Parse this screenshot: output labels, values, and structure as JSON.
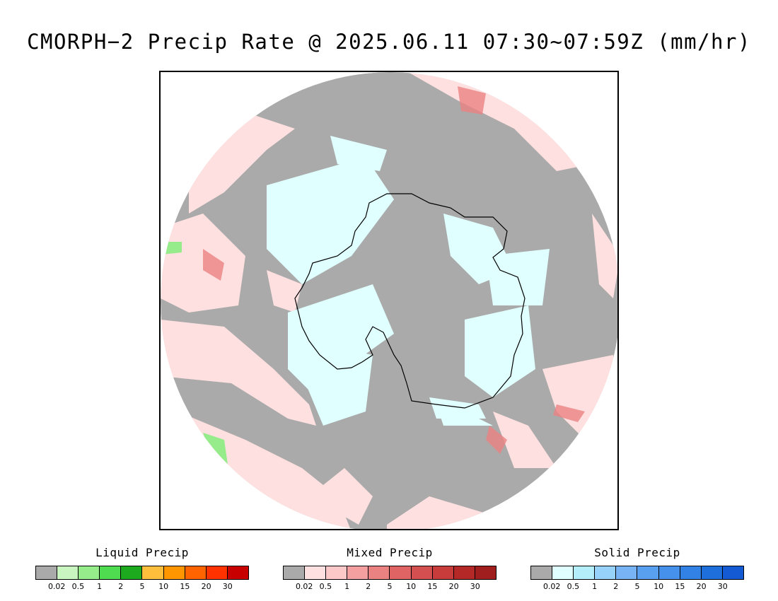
{
  "title": "CMORPH−2 Precip Rate @ 2025.06.11 07:30~07:59Z (mm/hr)",
  "colors": {
    "no_precip": "#aaaaaa",
    "continent_outline": "#000000"
  },
  "legends": [
    {
      "id": "liquid",
      "title": "Liquid Precip",
      "colors": [
        "#aaaaaa",
        "#c8f5c0",
        "#96eb8a",
        "#50dc50",
        "#1eaa1e",
        "#ffbe3c",
        "#ff9600",
        "#ff6400",
        "#ff3200",
        "#c80000"
      ],
      "ticks": [
        "0.02",
        "0.5",
        "1",
        "2",
        "5",
        "10",
        "15",
        "20",
        "30"
      ]
    },
    {
      "id": "mixed",
      "title": "Mixed Precip",
      "colors": [
        "#aaaaaa",
        "#ffe0e0",
        "#fcc8c8",
        "#f5a0a0",
        "#eb8282",
        "#e06464",
        "#d45050",
        "#c83c3c",
        "#b42828",
        "#a01e1e"
      ],
      "ticks": [
        "0.02",
        "0.5",
        "1",
        "2",
        "5",
        "10",
        "15",
        "20",
        "30"
      ]
    },
    {
      "id": "solid",
      "title": "Solid Precip",
      "colors": [
        "#aaaaaa",
        "#e0ffff",
        "#b4eefa",
        "#96d2fa",
        "#78b4f5",
        "#5aa0f0",
        "#4691eb",
        "#3282e6",
        "#1e6edc",
        "#145ad2"
      ],
      "ticks": [
        "0.02",
        "0.5",
        "1",
        "2",
        "5",
        "10",
        "15",
        "20",
        "30"
      ]
    }
  ]
}
